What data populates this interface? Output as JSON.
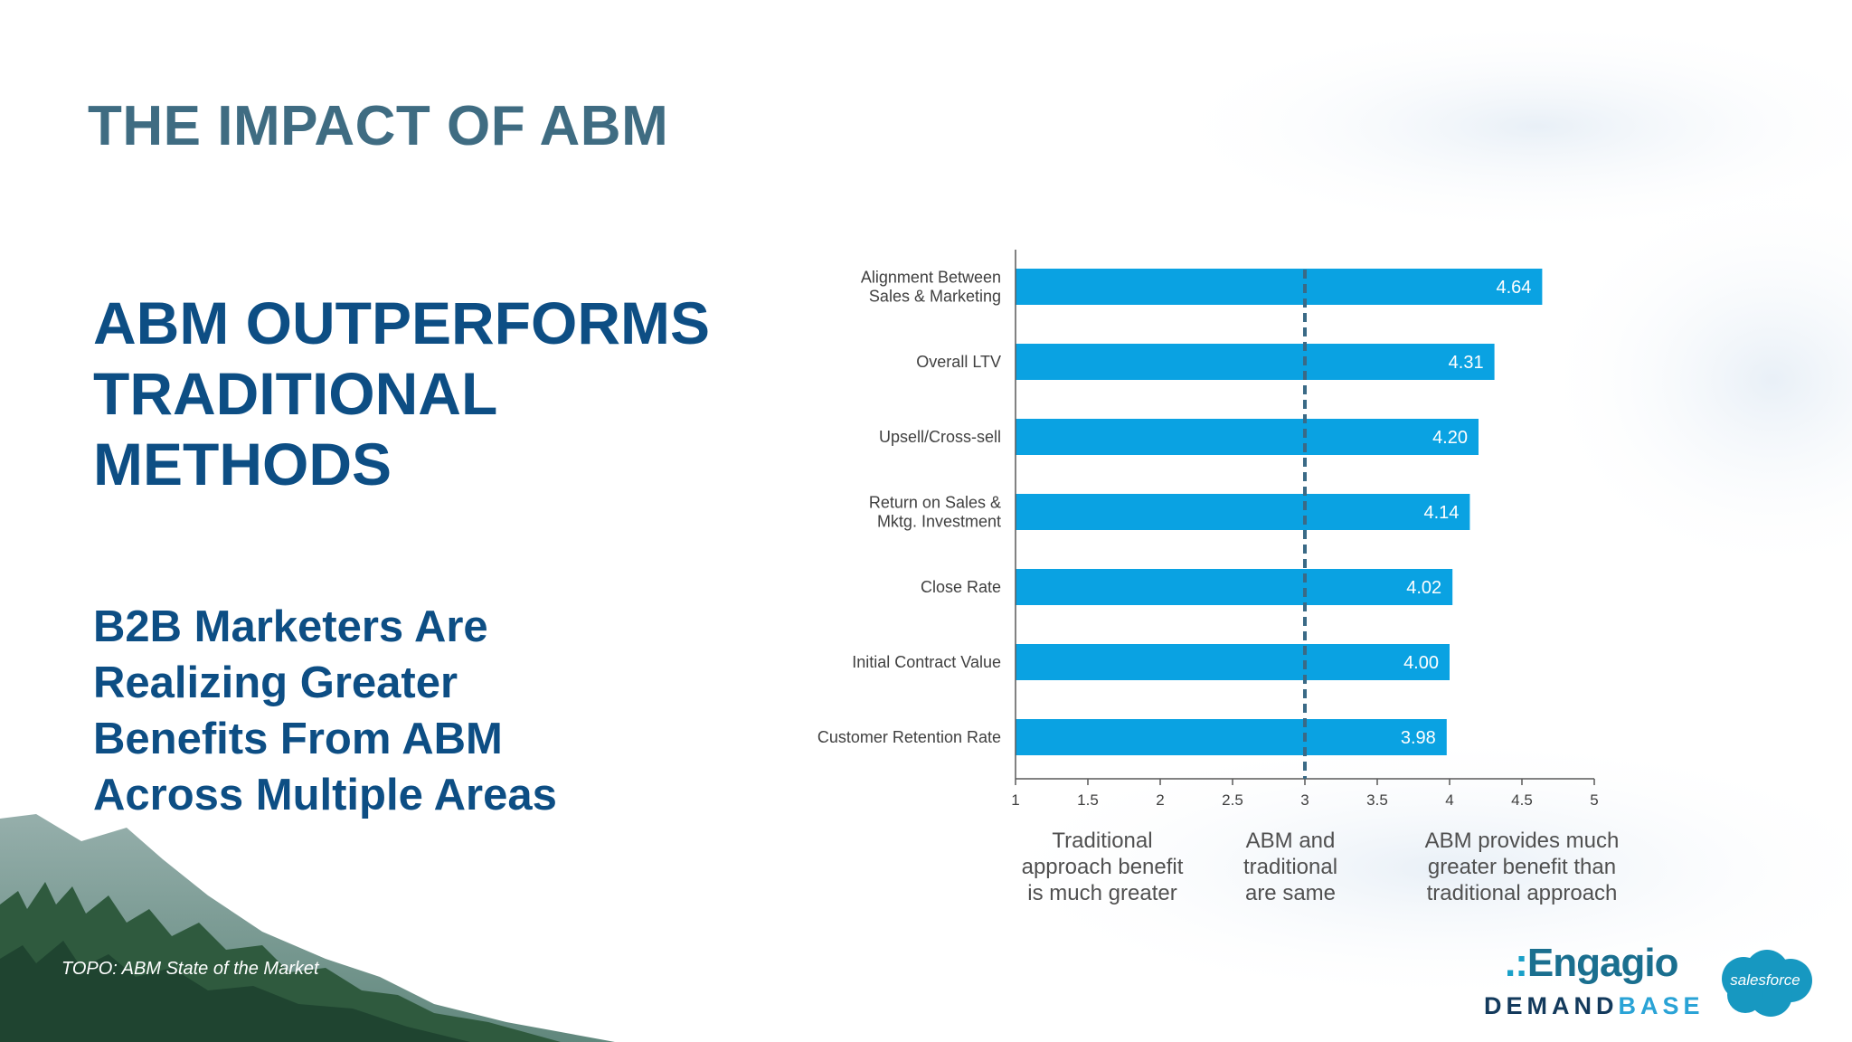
{
  "slide": {
    "title": "THE IMPACT OF ABM",
    "headline": "ABM OUTPERFORMS TRADITIONAL METHODS",
    "subheadline": "B2B Marketers Are Realizing Greater Benefits From ABM Across Multiple Areas",
    "source": "TOPO: ABM State of the Market"
  },
  "logos": {
    "engagio": "Engagio",
    "demandbase_demand": "DEMAND",
    "demandbase_base": "BASE",
    "salesforce": "salesforce"
  },
  "colors": {
    "bar": "#0aa2e2",
    "reference_line": "#3a6a86",
    "title": "#3f6c82",
    "headline": "#0d4e84"
  },
  "chart_data": {
    "type": "bar",
    "orientation": "horizontal",
    "categories": [
      [
        "Alignment Between",
        "Sales & Marketing"
      ],
      [
        "Overall LTV"
      ],
      [
        "Upsell/Cross-sell"
      ],
      [
        "Return on Sales &",
        "Mktg. Investment"
      ],
      [
        "Close Rate"
      ],
      [
        "Initial Contract Value"
      ],
      [
        "Customer Retention Rate"
      ]
    ],
    "values": [
      4.64,
      4.31,
      4.2,
      4.14,
      4.02,
      4.0,
      3.98
    ],
    "value_labels": [
      "4.64",
      "4.31",
      "4.20",
      "4.14",
      "4.02",
      "4.00",
      "3.98"
    ],
    "xlim": [
      1,
      5
    ],
    "x_ticks": [
      "1",
      "1.5",
      "2",
      "2.5",
      "3",
      "3.5",
      "4",
      "4.5",
      "5"
    ],
    "reference_line": 3,
    "grid": false,
    "legend": "none",
    "scale_interpretation": [
      {
        "x": 1.6,
        "lines": [
          "Traditional",
          "approach benefit",
          "is much greater"
        ]
      },
      {
        "x": 2.9,
        "lines": [
          "ABM and",
          "traditional",
          "are same"
        ]
      },
      {
        "x": 4.5,
        "lines": [
          "ABM provides much",
          "greater benefit than",
          "traditional approach"
        ]
      }
    ]
  }
}
